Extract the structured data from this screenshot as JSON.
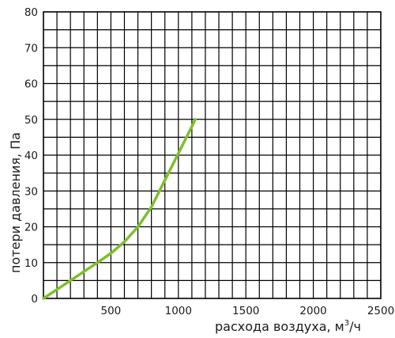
{
  "chart_data": {
    "type": "line",
    "xlabel": "расхода воздуха, м³/ч",
    "xlabel_main": "расхода воздуха, м",
    "xlabel_sup": "3",
    "xlabel_unit": "/ч",
    "ylabel": "потери давления, Па",
    "xlim": [
      0,
      2500
    ],
    "ylim": [
      0,
      80
    ],
    "x_ticks": [
      "500",
      "1000",
      "1500",
      "2000",
      "2500"
    ],
    "y_ticks": [
      "0",
      "10",
      "20",
      "30",
      "40",
      "50",
      "60",
      "70",
      "80"
    ],
    "grid": "on",
    "series": [
      {
        "color": "#7ebf2c",
        "x": [
          0,
          100,
          200,
          300,
          400,
          500,
          600,
          700,
          800,
          900,
          1000,
          1100,
          1125
        ],
        "y": [
          0,
          2.5,
          5,
          7.5,
          10,
          12.6,
          15.8,
          20,
          25.5,
          33,
          40.5,
          48,
          50
        ]
      }
    ]
  }
}
